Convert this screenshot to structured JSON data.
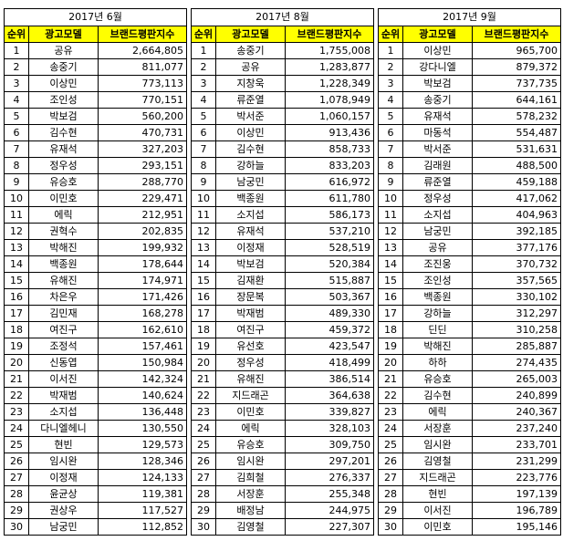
{
  "headers": {
    "rank": "순위",
    "model": "광고모델",
    "index": "브랜드평판지수"
  },
  "panels": [
    {
      "title": "2017년 6월",
      "rows": [
        [
          "1",
          "공유",
          "2,664,805"
        ],
        [
          "2",
          "송중기",
          "811,077"
        ],
        [
          "3",
          "이상민",
          "773,113"
        ],
        [
          "4",
          "조인성",
          "770,151"
        ],
        [
          "5",
          "박보검",
          "560,200"
        ],
        [
          "6",
          "김수현",
          "470,731"
        ],
        [
          "7",
          "유재석",
          "327,203"
        ],
        [
          "8",
          "정우성",
          "293,151"
        ],
        [
          "9",
          "유승호",
          "288,770"
        ],
        [
          "10",
          "이민호",
          "229,471"
        ],
        [
          "11",
          "에릭",
          "212,951"
        ],
        [
          "12",
          "권혁수",
          "202,835"
        ],
        [
          "13",
          "박해진",
          "199,932"
        ],
        [
          "14",
          "백종원",
          "178,644"
        ],
        [
          "15",
          "유해진",
          "174,971"
        ],
        [
          "16",
          "차은우",
          "171,426"
        ],
        [
          "17",
          "김민재",
          "168,278"
        ],
        [
          "18",
          "여진구",
          "162,610"
        ],
        [
          "19",
          "조정석",
          "157,461"
        ],
        [
          "20",
          "신동엽",
          "150,984"
        ],
        [
          "21",
          "이서진",
          "142,324"
        ],
        [
          "22",
          "박재범",
          "140,624"
        ],
        [
          "23",
          "소지섭",
          "136,448"
        ],
        [
          "24",
          "다니엘헤니",
          "130,550"
        ],
        [
          "25",
          "현빈",
          "129,573"
        ],
        [
          "26",
          "임시완",
          "128,346"
        ],
        [
          "27",
          "이정재",
          "124,133"
        ],
        [
          "28",
          "윤균상",
          "119,381"
        ],
        [
          "29",
          "권상우",
          "117,527"
        ],
        [
          "30",
          "남궁민",
          "112,852"
        ]
      ]
    },
    {
      "title": "2017년 8월",
      "rows": [
        [
          "1",
          "송중기",
          "1,755,008"
        ],
        [
          "2",
          "공유",
          "1,283,877"
        ],
        [
          "3",
          "지창욱",
          "1,228,349"
        ],
        [
          "4",
          "류준열",
          "1,078,949"
        ],
        [
          "5",
          "박서준",
          "1,060,157"
        ],
        [
          "6",
          "이상민",
          "913,436"
        ],
        [
          "7",
          "김수현",
          "858,733"
        ],
        [
          "8",
          "강하늘",
          "833,203"
        ],
        [
          "9",
          "남궁민",
          "616,972"
        ],
        [
          "10",
          "백종원",
          "611,780"
        ],
        [
          "11",
          "소지섭",
          "586,173"
        ],
        [
          "12",
          "유재석",
          "537,210"
        ],
        [
          "13",
          "이정재",
          "528,519"
        ],
        [
          "14",
          "박보검",
          "520,384"
        ],
        [
          "15",
          "김재환",
          "515,887"
        ],
        [
          "16",
          "장문복",
          "503,367"
        ],
        [
          "17",
          "박재범",
          "489,330"
        ],
        [
          "18",
          "여진구",
          "459,372"
        ],
        [
          "19",
          "유선호",
          "423,547"
        ],
        [
          "20",
          "정우성",
          "418,499"
        ],
        [
          "21",
          "유해진",
          "386,514"
        ],
        [
          "22",
          "지드래곤",
          "364,638"
        ],
        [
          "23",
          "이민호",
          "339,827"
        ],
        [
          "24",
          "에릭",
          "328,103"
        ],
        [
          "25",
          "유승호",
          "309,750"
        ],
        [
          "26",
          "임시완",
          "297,201"
        ],
        [
          "27",
          "김희철",
          "276,337"
        ],
        [
          "28",
          "서장훈",
          "255,348"
        ],
        [
          "29",
          "배정남",
          "244,975"
        ],
        [
          "30",
          "김영철",
          "227,307"
        ]
      ]
    },
    {
      "title": "2017년 9월",
      "rows": [
        [
          "1",
          "이상민",
          "965,700"
        ],
        [
          "2",
          "강다니엘",
          "879,372"
        ],
        [
          "3",
          "박보검",
          "737,735"
        ],
        [
          "4",
          "송중기",
          "644,161"
        ],
        [
          "5",
          "유재석",
          "578,232"
        ],
        [
          "6",
          "마동석",
          "554,487"
        ],
        [
          "7",
          "박서준",
          "531,631"
        ],
        [
          "8",
          "김래원",
          "488,500"
        ],
        [
          "9",
          "류준열",
          "459,188"
        ],
        [
          "10",
          "정우성",
          "417,062"
        ],
        [
          "11",
          "소지섭",
          "404,963"
        ],
        [
          "12",
          "남궁민",
          "392,185"
        ],
        [
          "13",
          "공유",
          "377,176"
        ],
        [
          "14",
          "조진웅",
          "370,732"
        ],
        [
          "15",
          "조인성",
          "357,565"
        ],
        [
          "16",
          "백종원",
          "330,102"
        ],
        [
          "17",
          "강하늘",
          "312,297"
        ],
        [
          "18",
          "딘딘",
          "310,258"
        ],
        [
          "19",
          "박해진",
          "285,887"
        ],
        [
          "20",
          "하하",
          "274,435"
        ],
        [
          "21",
          "유승호",
          "265,003"
        ],
        [
          "22",
          "김수현",
          "240,899"
        ],
        [
          "23",
          "에릭",
          "240,367"
        ],
        [
          "24",
          "서장훈",
          "237,240"
        ],
        [
          "25",
          "임시완",
          "233,701"
        ],
        [
          "26",
          "김영철",
          "231,299"
        ],
        [
          "27",
          "지드래곤",
          "223,776"
        ],
        [
          "28",
          "현빈",
          "197,139"
        ],
        [
          "29",
          "이서진",
          "196,789"
        ],
        [
          "30",
          "이민호",
          "195,146"
        ]
      ]
    }
  ]
}
